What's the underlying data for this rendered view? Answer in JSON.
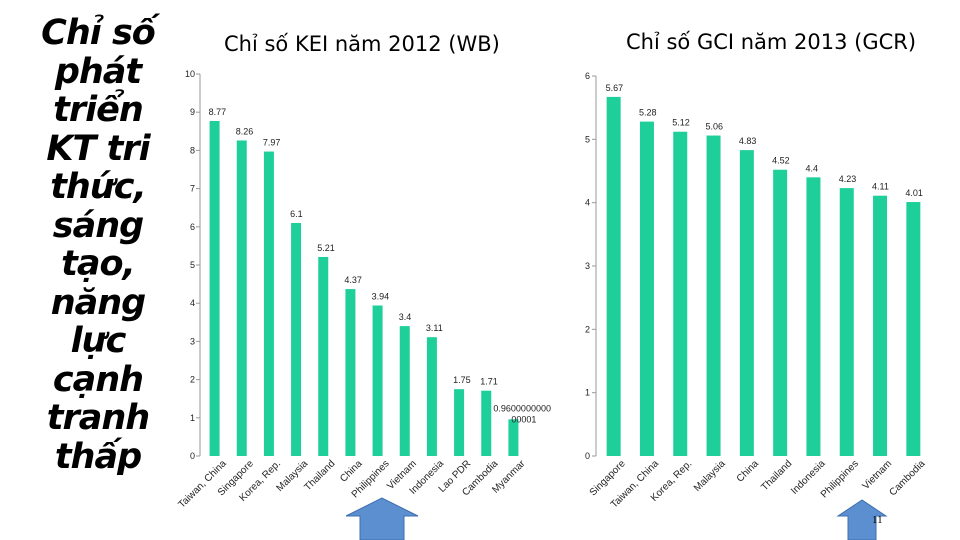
{
  "slide": {
    "title_lines": [
      "Chỉ số",
      "phát",
      "triển",
      "KT tri",
      "thức,",
      "sáng",
      "tạo,",
      "năng",
      "lực",
      "cạnh",
      "tranh",
      "thấp"
    ],
    "page_number": "11",
    "bar_color": "#1fcf9a",
    "arrow_color": "#5b8fd0"
  },
  "chart_data": [
    {
      "type": "bar",
      "title": "Chỉ số KEI năm 2012 (WB)",
      "categories": [
        "Taiwan, China",
        "Singapore",
        "Korea, Rep.",
        "Malaysia",
        "Thailand",
        "China",
        "Philippines",
        "Vietnam",
        "Indonesia",
        "Lao PDR",
        "Cambodia",
        "Myanmar"
      ],
      "values": [
        8.77,
        8.26,
        7.97,
        6.1,
        5.21,
        4.37,
        3.94,
        3.4,
        3.11,
        1.75,
        1.71,
        0.96
      ],
      "data_labels": [
        "8.77",
        "8.26",
        "7.97",
        "6.1",
        "5.21",
        "4.37",
        "3.94",
        "3.4",
        "3.11",
        "1.75",
        "1.71",
        "0.9600000000 00001"
      ],
      "ylim": [
        0,
        10
      ],
      "yticks": [
        "0",
        "1",
        "2",
        "3",
        "4",
        "5",
        "6",
        "7",
        "8",
        "9",
        "10"
      ],
      "xlabel": "",
      "ylabel": "",
      "highlight": "Vietnam",
      "grid": false
    },
    {
      "type": "bar",
      "title": "Chỉ số GCI năm 2013 (GCR)",
      "categories": [
        "Singapore",
        "Taiwan, China",
        "Korea, Rep.",
        "Malaysia",
        "China",
        "Thailand",
        "Indonesia",
        "Philippines",
        "Vietnam",
        "Cambodia"
      ],
      "values": [
        5.67,
        5.28,
        5.12,
        5.06,
        4.83,
        4.52,
        4.4,
        4.23,
        4.11,
        4.01
      ],
      "data_labels": [
        "5.67",
        "5.28",
        "5.12",
        "5.06",
        "4.83",
        "4.52",
        "4.4",
        "4.23",
        "4.11",
        "4.01"
      ],
      "ylim": [
        0,
        6
      ],
      "yticks": [
        "0",
        "1",
        "2",
        "3",
        "4",
        "5",
        "6"
      ],
      "xlabel": "",
      "ylabel": "",
      "highlight": "Vietnam",
      "grid": false
    }
  ]
}
